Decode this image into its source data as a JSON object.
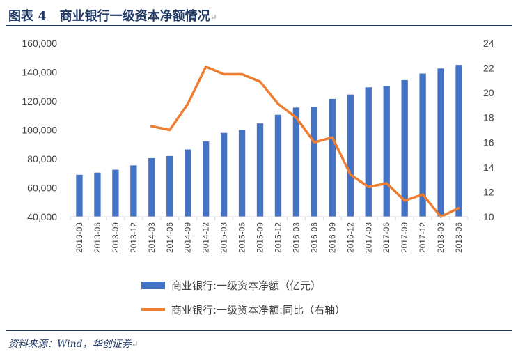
{
  "header": {
    "label": "图表 4",
    "title": "商业银行一级资本净额情况",
    "para_mark": "↵"
  },
  "source": {
    "text": "资料来源：Wind，华创证券",
    "para_mark": "↵"
  },
  "colors": {
    "bar": "#4472c4",
    "line": "#ed7d31",
    "title": "#1f3864"
  },
  "chart_data": {
    "type": "bar+line",
    "categories": [
      "2013-03",
      "2013-06",
      "2013-09",
      "2013-12",
      "2014-03",
      "2014-06",
      "2014-09",
      "2014-12",
      "2015-03",
      "2015-06",
      "2015-09",
      "2015-12",
      "2016-03",
      "2016-06",
      "2016-09",
      "2016-12",
      "2017-03",
      "2017-06",
      "2017-09",
      "2017-12",
      "2018-03",
      "2018-06"
    ],
    "series": [
      {
        "name": "商业银行:一级资本净额（亿元）",
        "type": "bar",
        "axis": "left",
        "values": [
          69000,
          70500,
          72500,
          75500,
          80500,
          82000,
          86500,
          92000,
          98000,
          100000,
          104500,
          110500,
          115500,
          116000,
          121500,
          124500,
          129500,
          130500,
          134500,
          139000,
          142500,
          145000
        ]
      },
      {
        "name": "商业银行:一级资本净额:同比（右轴）",
        "type": "line",
        "axis": "right",
        "values": [
          null,
          null,
          null,
          null,
          17.3,
          17.0,
          19.1,
          22.1,
          21.5,
          21.5,
          20.9,
          19.1,
          18.0,
          16.0,
          16.4,
          13.4,
          12.4,
          12.7,
          11.3,
          11.8,
          10.0,
          10.7
        ]
      }
    ],
    "y_left": {
      "min": 40000,
      "max": 160000,
      "ticks": [
        "40,000",
        "60,000",
        "80,000",
        "100,000",
        "120,000",
        "140,000",
        "160,000"
      ]
    },
    "y_right": {
      "min": 10,
      "max": 24,
      "ticks": [
        "10",
        "12",
        "14",
        "16",
        "18",
        "20",
        "22",
        "24"
      ]
    },
    "legend_position": "bottom",
    "grid": false
  }
}
